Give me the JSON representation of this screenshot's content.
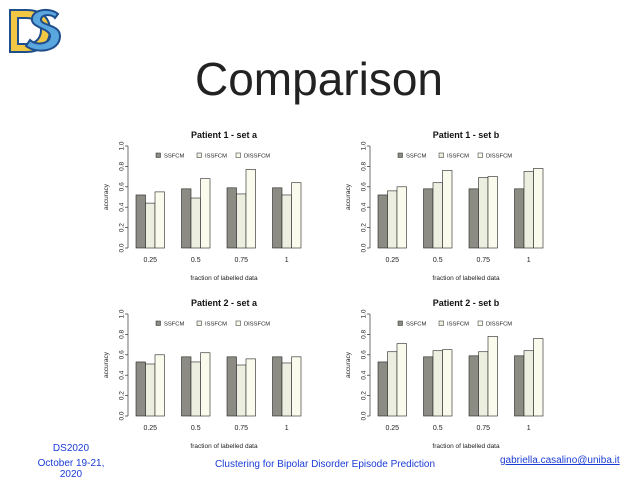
{
  "slide": {
    "title": "Comparison",
    "footer_left_line1": "DS2020",
    "footer_left_line2": "October 19-21, 2020",
    "footer_center": "Clustering for Bipolar Disorder Episode Prediction",
    "footer_right": "gabriella.casalino@uniba.it",
    "logo_colors": {
      "yellow": "#f2c744",
      "blue": "#5aa6df",
      "outline": "#1f4e8c"
    }
  },
  "colors": {
    "SSFCM": "#8c8c84",
    "ISSFCM": "#ecefe0",
    "DISSFCM": "#fbfbed",
    "stroke": "#222222"
  },
  "chart_data": [
    {
      "type": "bar",
      "title": "Patient 1 - set a",
      "xlabel": "fraction of labelled data",
      "ylabel": "accuracy",
      "categories": [
        "0.25",
        "0.5",
        "0.75",
        "1"
      ],
      "ylim": [
        0,
        1
      ],
      "yticks": [
        "0.0",
        "0.2",
        "0.4",
        "0.6",
        "0.8",
        "1.0"
      ],
      "legend": "top",
      "series": [
        {
          "name": "SSFCM",
          "values": [
            0.52,
            0.58,
            0.59,
            0.59
          ]
        },
        {
          "name": "ISSFCM",
          "values": [
            0.44,
            0.49,
            0.53,
            0.52
          ]
        },
        {
          "name": "DISSFCM",
          "values": [
            0.55,
            0.68,
            0.77,
            0.64
          ]
        }
      ]
    },
    {
      "type": "bar",
      "title": "Patient 1 - set b",
      "xlabel": "fraction of labelled data",
      "ylabel": "accuracy",
      "categories": [
        "0.25",
        "0.5",
        "0.75",
        "1"
      ],
      "ylim": [
        0,
        1
      ],
      "yticks": [
        "0.0",
        "0.2",
        "0.4",
        "0.6",
        "0.8",
        "1.0"
      ],
      "legend": "top",
      "series": [
        {
          "name": "SSFCM",
          "values": [
            0.52,
            0.58,
            0.58,
            0.58
          ]
        },
        {
          "name": "ISSFCM",
          "values": [
            0.56,
            0.64,
            0.69,
            0.75
          ]
        },
        {
          "name": "DISSFCM",
          "values": [
            0.6,
            0.76,
            0.7,
            0.78
          ]
        }
      ]
    },
    {
      "type": "bar",
      "title": "Patient 2 - set a",
      "xlabel": "fraction of labelled data",
      "ylabel": "accuracy",
      "categories": [
        "0.25",
        "0.5",
        "0.75",
        "1"
      ],
      "ylim": [
        0,
        1
      ],
      "yticks": [
        "0.0",
        "0.2",
        "0.4",
        "0.6",
        "0.8",
        "1.0"
      ],
      "legend": "top",
      "series": [
        {
          "name": "SSFCM",
          "values": [
            0.53,
            0.58,
            0.58,
            0.58
          ]
        },
        {
          "name": "ISSFCM",
          "values": [
            0.51,
            0.53,
            0.5,
            0.52
          ]
        },
        {
          "name": "DISSFCM",
          "values": [
            0.6,
            0.62,
            0.56,
            0.58
          ]
        }
      ]
    },
    {
      "type": "bar",
      "title": "Patient 2 - set b",
      "xlabel": "fraction of labelled data",
      "ylabel": "accuracy",
      "categories": [
        "0.25",
        "0.5",
        "0.75",
        "1"
      ],
      "ylim": [
        0,
        1
      ],
      "yticks": [
        "0.0",
        "0.2",
        "0.4",
        "0.6",
        "0.8",
        "1.0"
      ],
      "legend": "top",
      "series": [
        {
          "name": "SSFCM",
          "values": [
            0.53,
            0.58,
            0.59,
            0.59
          ]
        },
        {
          "name": "ISSFCM",
          "values": [
            0.63,
            0.64,
            0.63,
            0.64
          ]
        },
        {
          "name": "DISSFCM",
          "values": [
            0.71,
            0.65,
            0.78,
            0.76
          ]
        }
      ]
    }
  ]
}
